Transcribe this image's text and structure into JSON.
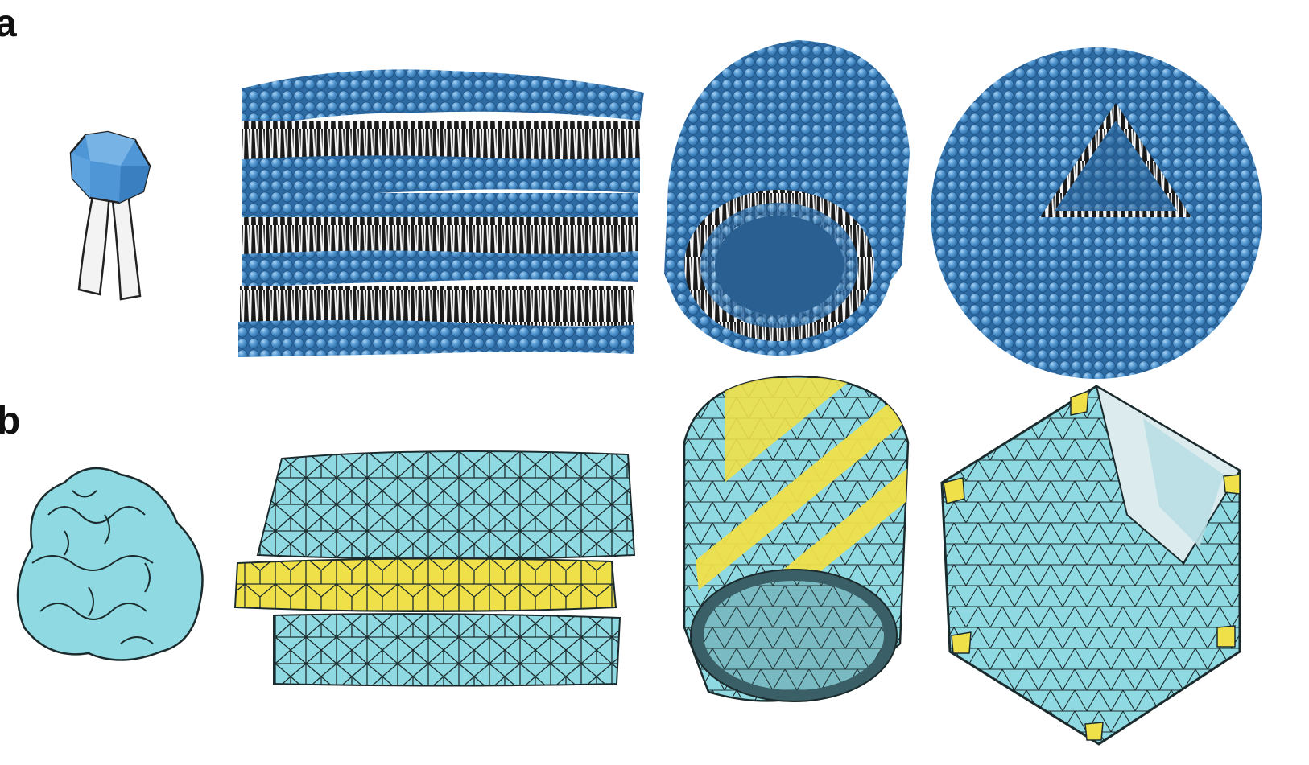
{
  "figure": {
    "panels": [
      {
        "label": "a",
        "items": [
          {
            "icon": "lipid-molecule-icon"
          },
          {
            "icon": "lipid-multilayer-stack-icon"
          },
          {
            "icon": "lipid-tube-icon"
          },
          {
            "icon": "lipid-vesicle-icon"
          }
        ]
      },
      {
        "label": "b",
        "items": [
          {
            "icon": "protein-subunit-icon"
          },
          {
            "icon": "protein-sheet-stack-icon"
          },
          {
            "icon": "protein-tube-icon"
          },
          {
            "icon": "protein-icosahedral-cage-icon"
          }
        ]
      }
    ]
  },
  "colors": {
    "lipid_head": "#4a8fcf",
    "lipid_head_light": "#7fb7e6",
    "lipid_tail": "#f2f2f2",
    "protein": "#8fd9e2",
    "protein_dark": "#5fb8c4",
    "protein_accent": "#efe04a",
    "outline": "#111111",
    "background": "#ffffff"
  }
}
